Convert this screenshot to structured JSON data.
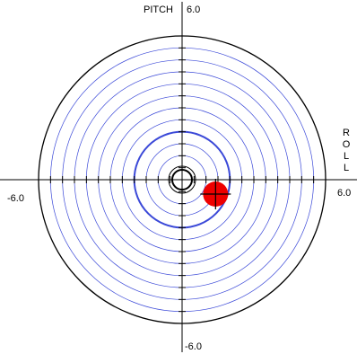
{
  "axes": {
    "pitch": {
      "name": "PITCH",
      "max_label": "6.0",
      "min_label": "-6.0"
    },
    "roll": {
      "name": "ROLL",
      "max_label": "6.0",
      "min_label": "-6.0"
    }
  },
  "range": {
    "min": -6.0,
    "max": 6.0
  },
  "reading": {
    "roll": 1.4,
    "pitch": -0.6
  },
  "colors": {
    "rings": "#3b49d8",
    "outer_ring": "#000000",
    "axes": "#000000",
    "marker": "#ee0000",
    "center": "#000000"
  }
}
